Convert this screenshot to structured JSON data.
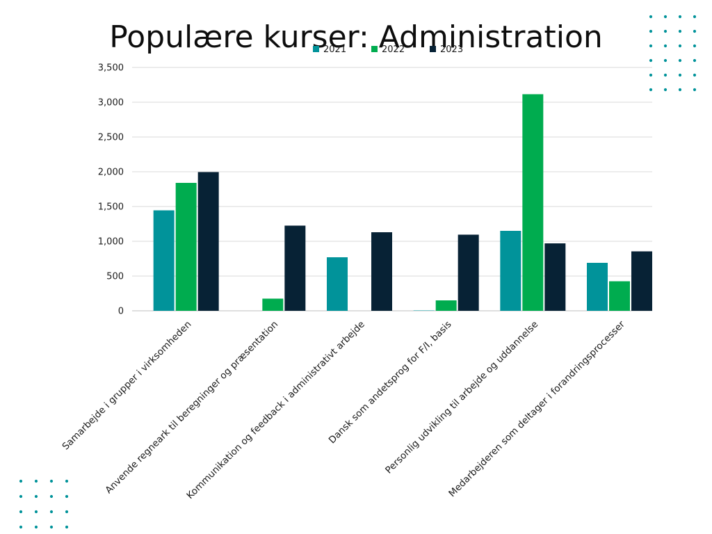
{
  "chart_data": {
    "type": "bar",
    "title": "Populære kurser: Administration",
    "categories": [
      "Samarbejde i grupper i virksomheden",
      "Anvende regneark til beregninger og præsentation",
      "Kommunikation og feedback i administrativt arbejde",
      "Dansk som andetsprog for F/I, basis",
      "Personlig udvikling til arbejde og uddannelse",
      "Medarbejderen som deltager i forandringsprocesser"
    ],
    "series": [
      {
        "name": "2021",
        "color": "#01939a",
        "values": [
          1445,
          0,
          770,
          5,
          1150,
          690
        ]
      },
      {
        "name": "2022",
        "color": "#00ac4f",
        "values": [
          1840,
          175,
          0,
          150,
          3115,
          425
        ]
      },
      {
        "name": "2023",
        "color": "#072235",
        "values": [
          1995,
          1225,
          1130,
          1095,
          970,
          855
        ]
      }
    ],
    "ylim": [
      0,
      3500
    ],
    "yticks": [
      0,
      500,
      1000,
      1500,
      2000,
      2500,
      3000,
      3500
    ],
    "ytick_labels": [
      "0",
      "500",
      "1,000",
      "1,500",
      "2,000",
      "2,500",
      "3,000",
      "3,500"
    ],
    "xlabel": "",
    "ylabel": "",
    "legend_position": "top",
    "grid": true
  },
  "decorations": {
    "dot_color": "#01939a",
    "dot_pattern_icon": "dot-grid-icon"
  }
}
